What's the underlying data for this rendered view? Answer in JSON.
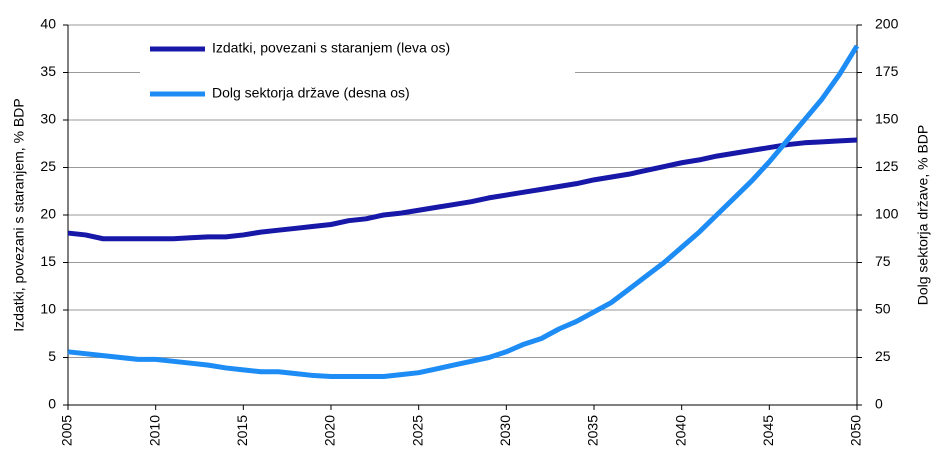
{
  "chart_data": {
    "type": "line",
    "y_label": "Izdatki, povezani s staranjem, % BDP",
    "y2_label": "Dolg sektorja države, % BDP",
    "x": [
      2005,
      2006,
      2007,
      2008,
      2009,
      2010,
      2011,
      2012,
      2013,
      2014,
      2015,
      2016,
      2017,
      2018,
      2019,
      2020,
      2021,
      2022,
      2023,
      2024,
      2025,
      2026,
      2027,
      2028,
      2029,
      2030,
      2031,
      2032,
      2033,
      2034,
      2035,
      2036,
      2037,
      2038,
      2039,
      2040,
      2041,
      2042,
      2043,
      2044,
      2045,
      2046,
      2047,
      2048,
      2049,
      2050
    ],
    "xlim": [
      2005,
      2050
    ],
    "xticks": [
      2005,
      2010,
      2015,
      2020,
      2025,
      2030,
      2035,
      2040,
      2045,
      2050
    ],
    "ylim": [
      0,
      40
    ],
    "yticks": [
      0,
      5,
      10,
      15,
      20,
      25,
      30,
      35,
      40
    ],
    "y2lim": [
      0,
      200
    ],
    "y2ticks": [
      0,
      25,
      50,
      75,
      100,
      125,
      150,
      175,
      200
    ],
    "grid": true,
    "legend": "upper left",
    "series": [
      {
        "name": "Izdatki, povezani s staranjem (leva os)",
        "color": "#1717a8",
        "values": [
          18.1,
          17.9,
          17.5,
          17.5,
          17.5,
          17.5,
          17.5,
          17.6,
          17.7,
          17.7,
          17.9,
          18.2,
          18.4,
          18.6,
          18.8,
          19.0,
          19.4,
          19.6,
          20.0,
          20.2,
          20.5,
          20.8,
          21.1,
          21.4,
          21.8,
          22.1,
          22.4,
          22.7,
          23.0,
          23.3,
          23.7,
          24.0,
          24.3,
          24.7,
          25.1,
          25.5,
          25.8,
          26.2,
          26.5,
          26.8,
          27.1,
          27.4,
          27.6,
          27.7,
          27.8,
          27.9
        ]
      },
      {
        "name": "Dolg sektorja države (desna os)",
        "color": "#1e8cf5",
        "axis": "y2",
        "values": [
          28,
          27,
          26,
          25,
          24,
          24,
          23,
          22,
          21,
          19.5,
          18.5,
          17.5,
          17.5,
          16.5,
          15.5,
          15,
          15,
          15,
          15,
          16,
          17,
          19,
          21,
          23,
          25,
          28,
          32,
          35,
          40,
          44,
          49,
          54,
          61,
          68,
          75,
          83,
          91,
          100,
          109,
          118,
          128,
          139,
          150,
          161,
          174,
          189
        ]
      }
    ]
  }
}
